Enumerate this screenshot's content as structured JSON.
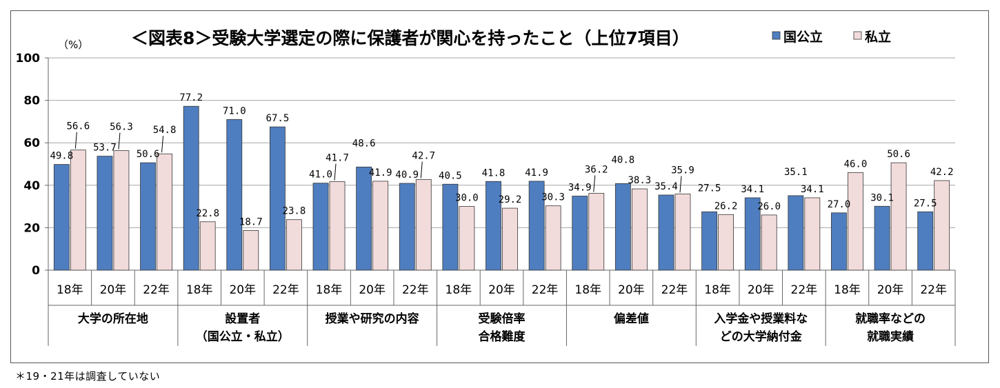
{
  "footnote": "＊19・21年は調査していない",
  "chart_data": {
    "type": "bar",
    "title": "＜図表8＞受験大学選定の際に保護者が関心を持ったこと（上位7項目）",
    "y_unit": "（%）",
    "ylim": [
      0,
      100
    ],
    "yticks": [
      0,
      20,
      40,
      60,
      80,
      100
    ],
    "grid": true,
    "legend_position": "top-right",
    "colors": {
      "国公立": "#4f7ec0",
      "私立": "#f2dcdb",
      "border": "#333333"
    },
    "groups": [
      {
        "label_lines": [
          "大学の所在地"
        ],
        "years": [
          "18年",
          "20年",
          "22年"
        ]
      },
      {
        "label_lines": [
          "設置者",
          "（国公立・私立）"
        ],
        "years": [
          "18年",
          "20年",
          "22年"
        ]
      },
      {
        "label_lines": [
          "授業や研究の内容"
        ],
        "years": [
          "18年",
          "20年",
          "22年"
        ]
      },
      {
        "label_lines": [
          "受験倍率",
          "合格難度"
        ],
        "years": [
          "18年",
          "20年",
          "22年"
        ]
      },
      {
        "label_lines": [
          "偏差値"
        ],
        "years": [
          "18年",
          "20年",
          "22年"
        ]
      },
      {
        "label_lines": [
          "入学金や授業料な",
          "どの大学納付金"
        ],
        "years": [
          "18年",
          "20年",
          "22年"
        ]
      },
      {
        "label_lines": [
          "就職率などの",
          "就職実績"
        ],
        "years": [
          "18年",
          "20年",
          "22年"
        ]
      }
    ],
    "series": [
      {
        "name": "国公立",
        "values": [
          49.8,
          53.7,
          50.6,
          77.2,
          71.0,
          67.5,
          41.0,
          48.6,
          40.9,
          40.5,
          41.8,
          41.9,
          34.9,
          40.8,
          35.4,
          27.5,
          34.1,
          35.1,
          27.0,
          30.1,
          27.5
        ]
      },
      {
        "name": "私立",
        "values": [
          56.6,
          56.3,
          54.8,
          22.8,
          18.7,
          23.8,
          41.7,
          41.9,
          42.7,
          30.0,
          29.2,
          30.3,
          36.2,
          38.3,
          35.9,
          26.2,
          26.0,
          34.1,
          46.0,
          50.6,
          42.2
        ]
      }
    ]
  }
}
